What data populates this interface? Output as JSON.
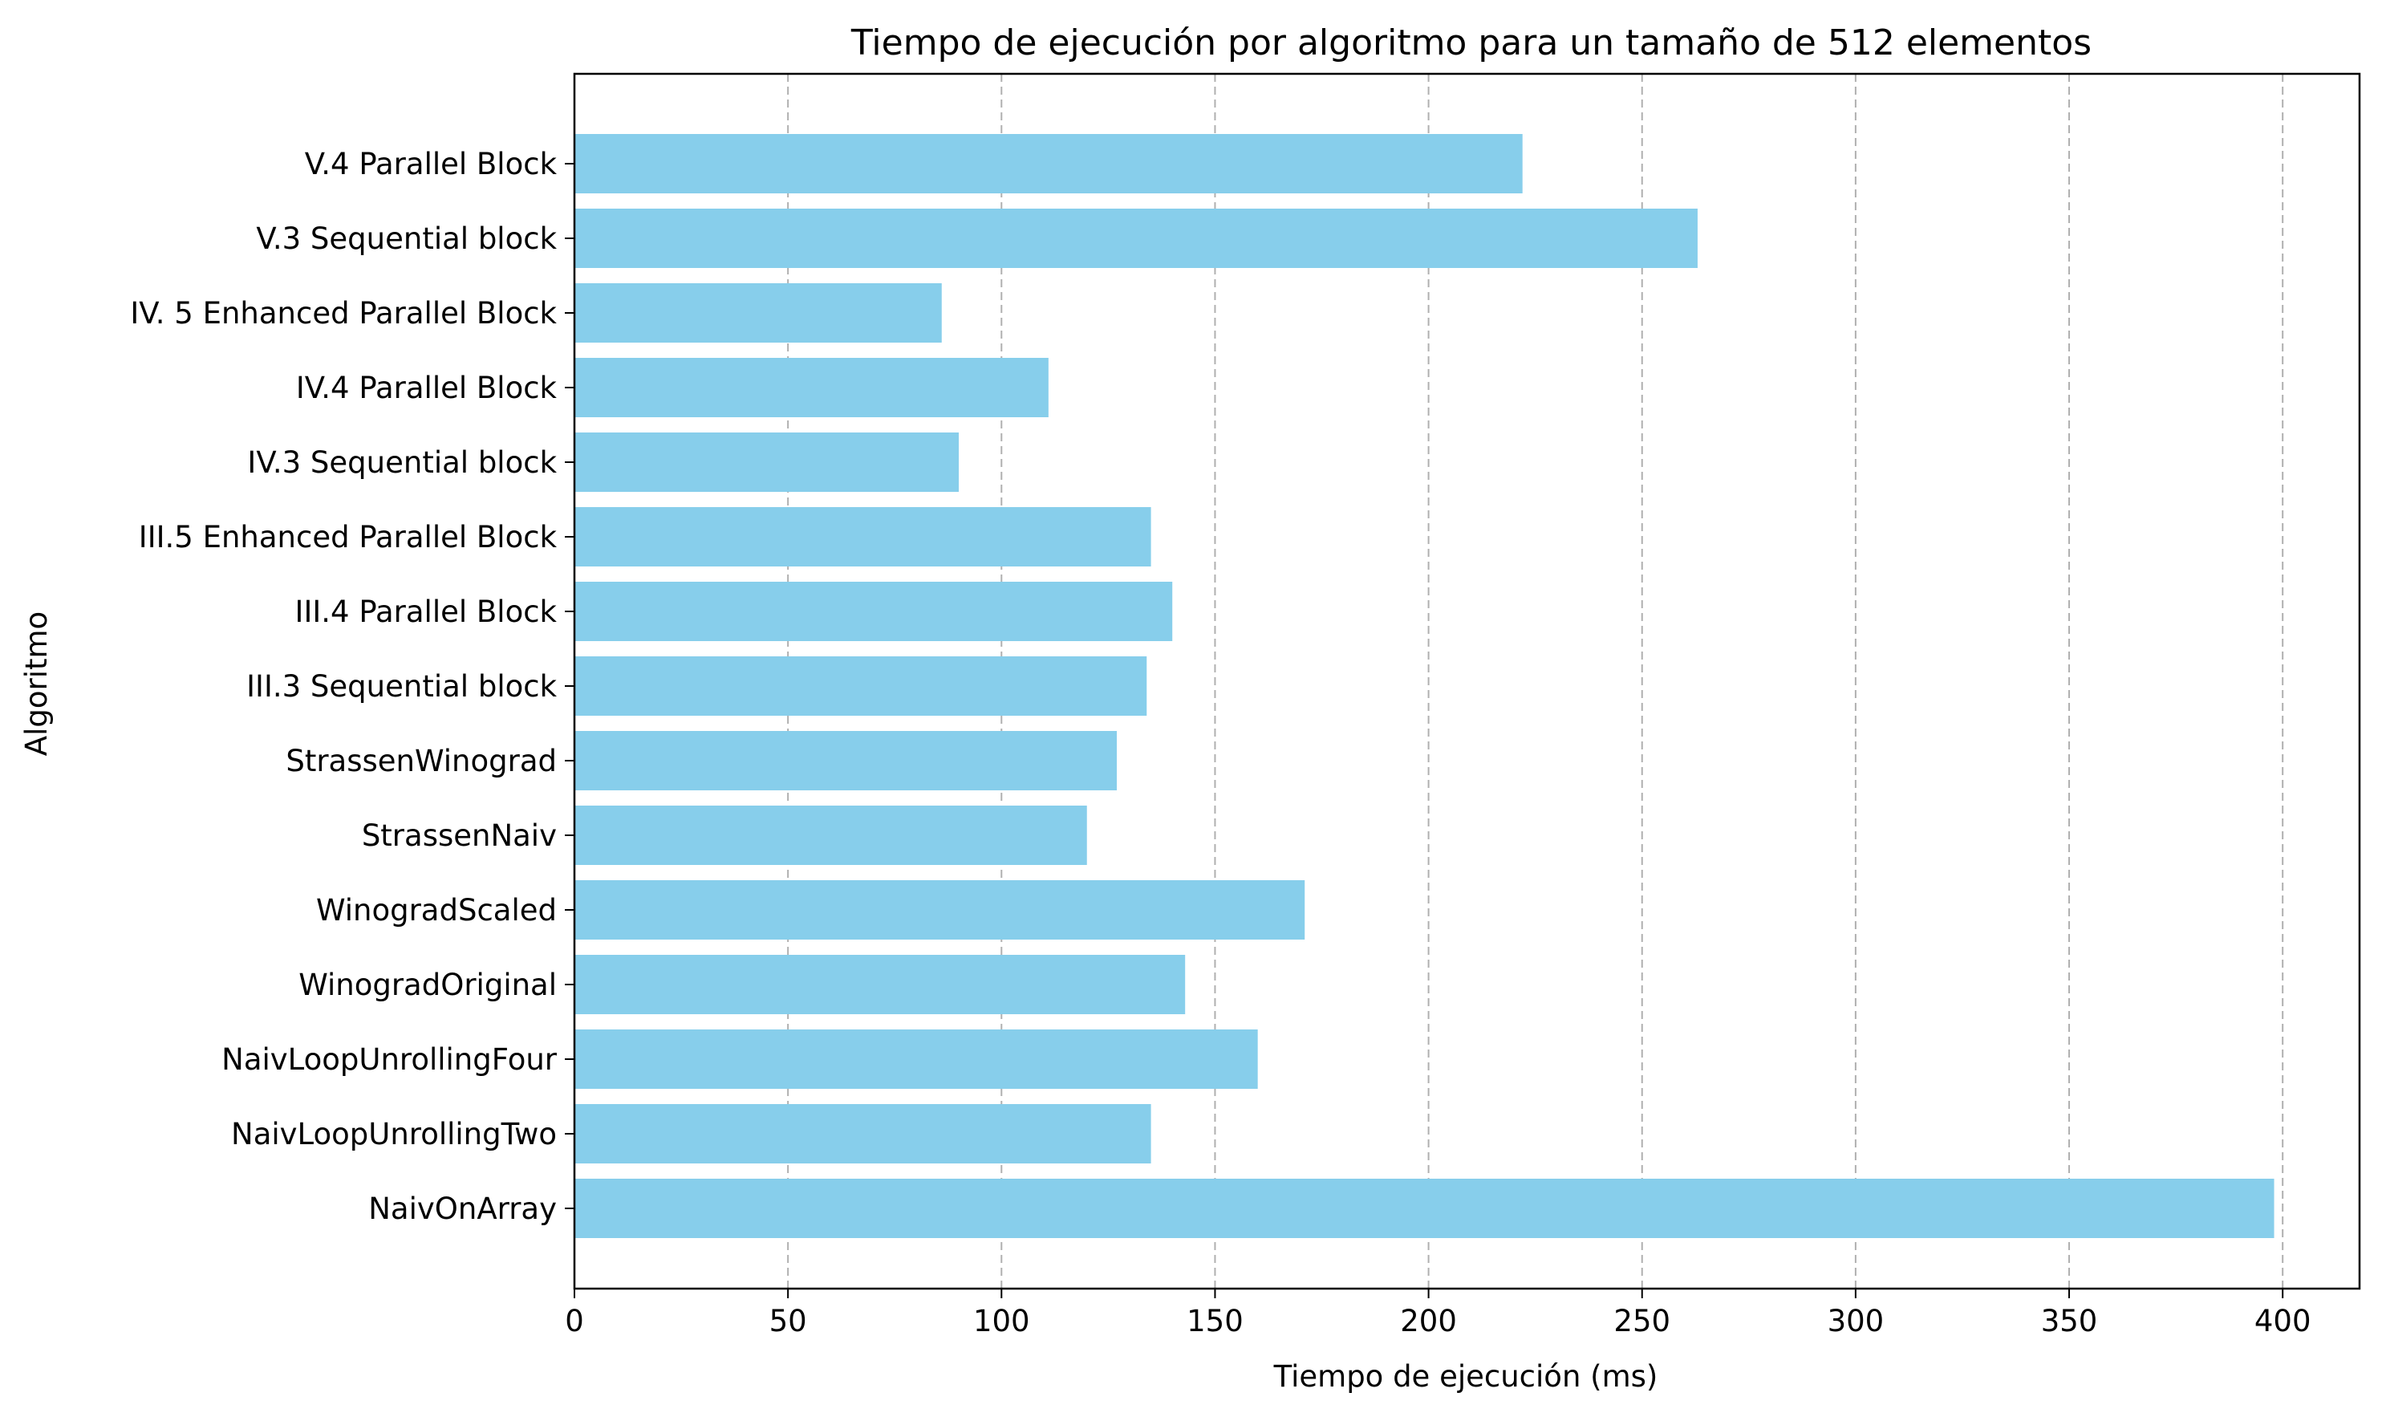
{
  "chart_data": {
    "type": "bar",
    "orientation": "horizontal",
    "title": "Tiempo de ejecución por algoritmo para un tamaño de 512 elementos",
    "xlabel": "Tiempo de ejecución (ms)",
    "ylabel": "Algoritmo",
    "xlim": [
      0,
      418
    ],
    "xticks": [
      0,
      50,
      100,
      150,
      200,
      250,
      300,
      350,
      400
    ],
    "grid": {
      "x": true,
      "y": false,
      "style": "dashed"
    },
    "bar_color": "#87ceeb",
    "categories": [
      "NaivOnArray",
      "NaivLoopUnrollingTwo",
      "NaivLoopUnrollingFour",
      "WinogradOriginal",
      "WinogradScaled",
      "StrassenNaiv",
      "StrassenWinograd",
      "III.3 Sequential block",
      "III.4 Parallel Block",
      "III.5 Enhanced Parallel Block",
      "IV.3 Sequential block",
      "IV.4 Parallel Block",
      "IV. 5 Enhanced Parallel Block",
      "V.3 Sequential block",
      "V.4 Parallel Block"
    ],
    "values": [
      398,
      135,
      160,
      143,
      171,
      120,
      127,
      134,
      140,
      135,
      90,
      111,
      86,
      263,
      222
    ]
  }
}
